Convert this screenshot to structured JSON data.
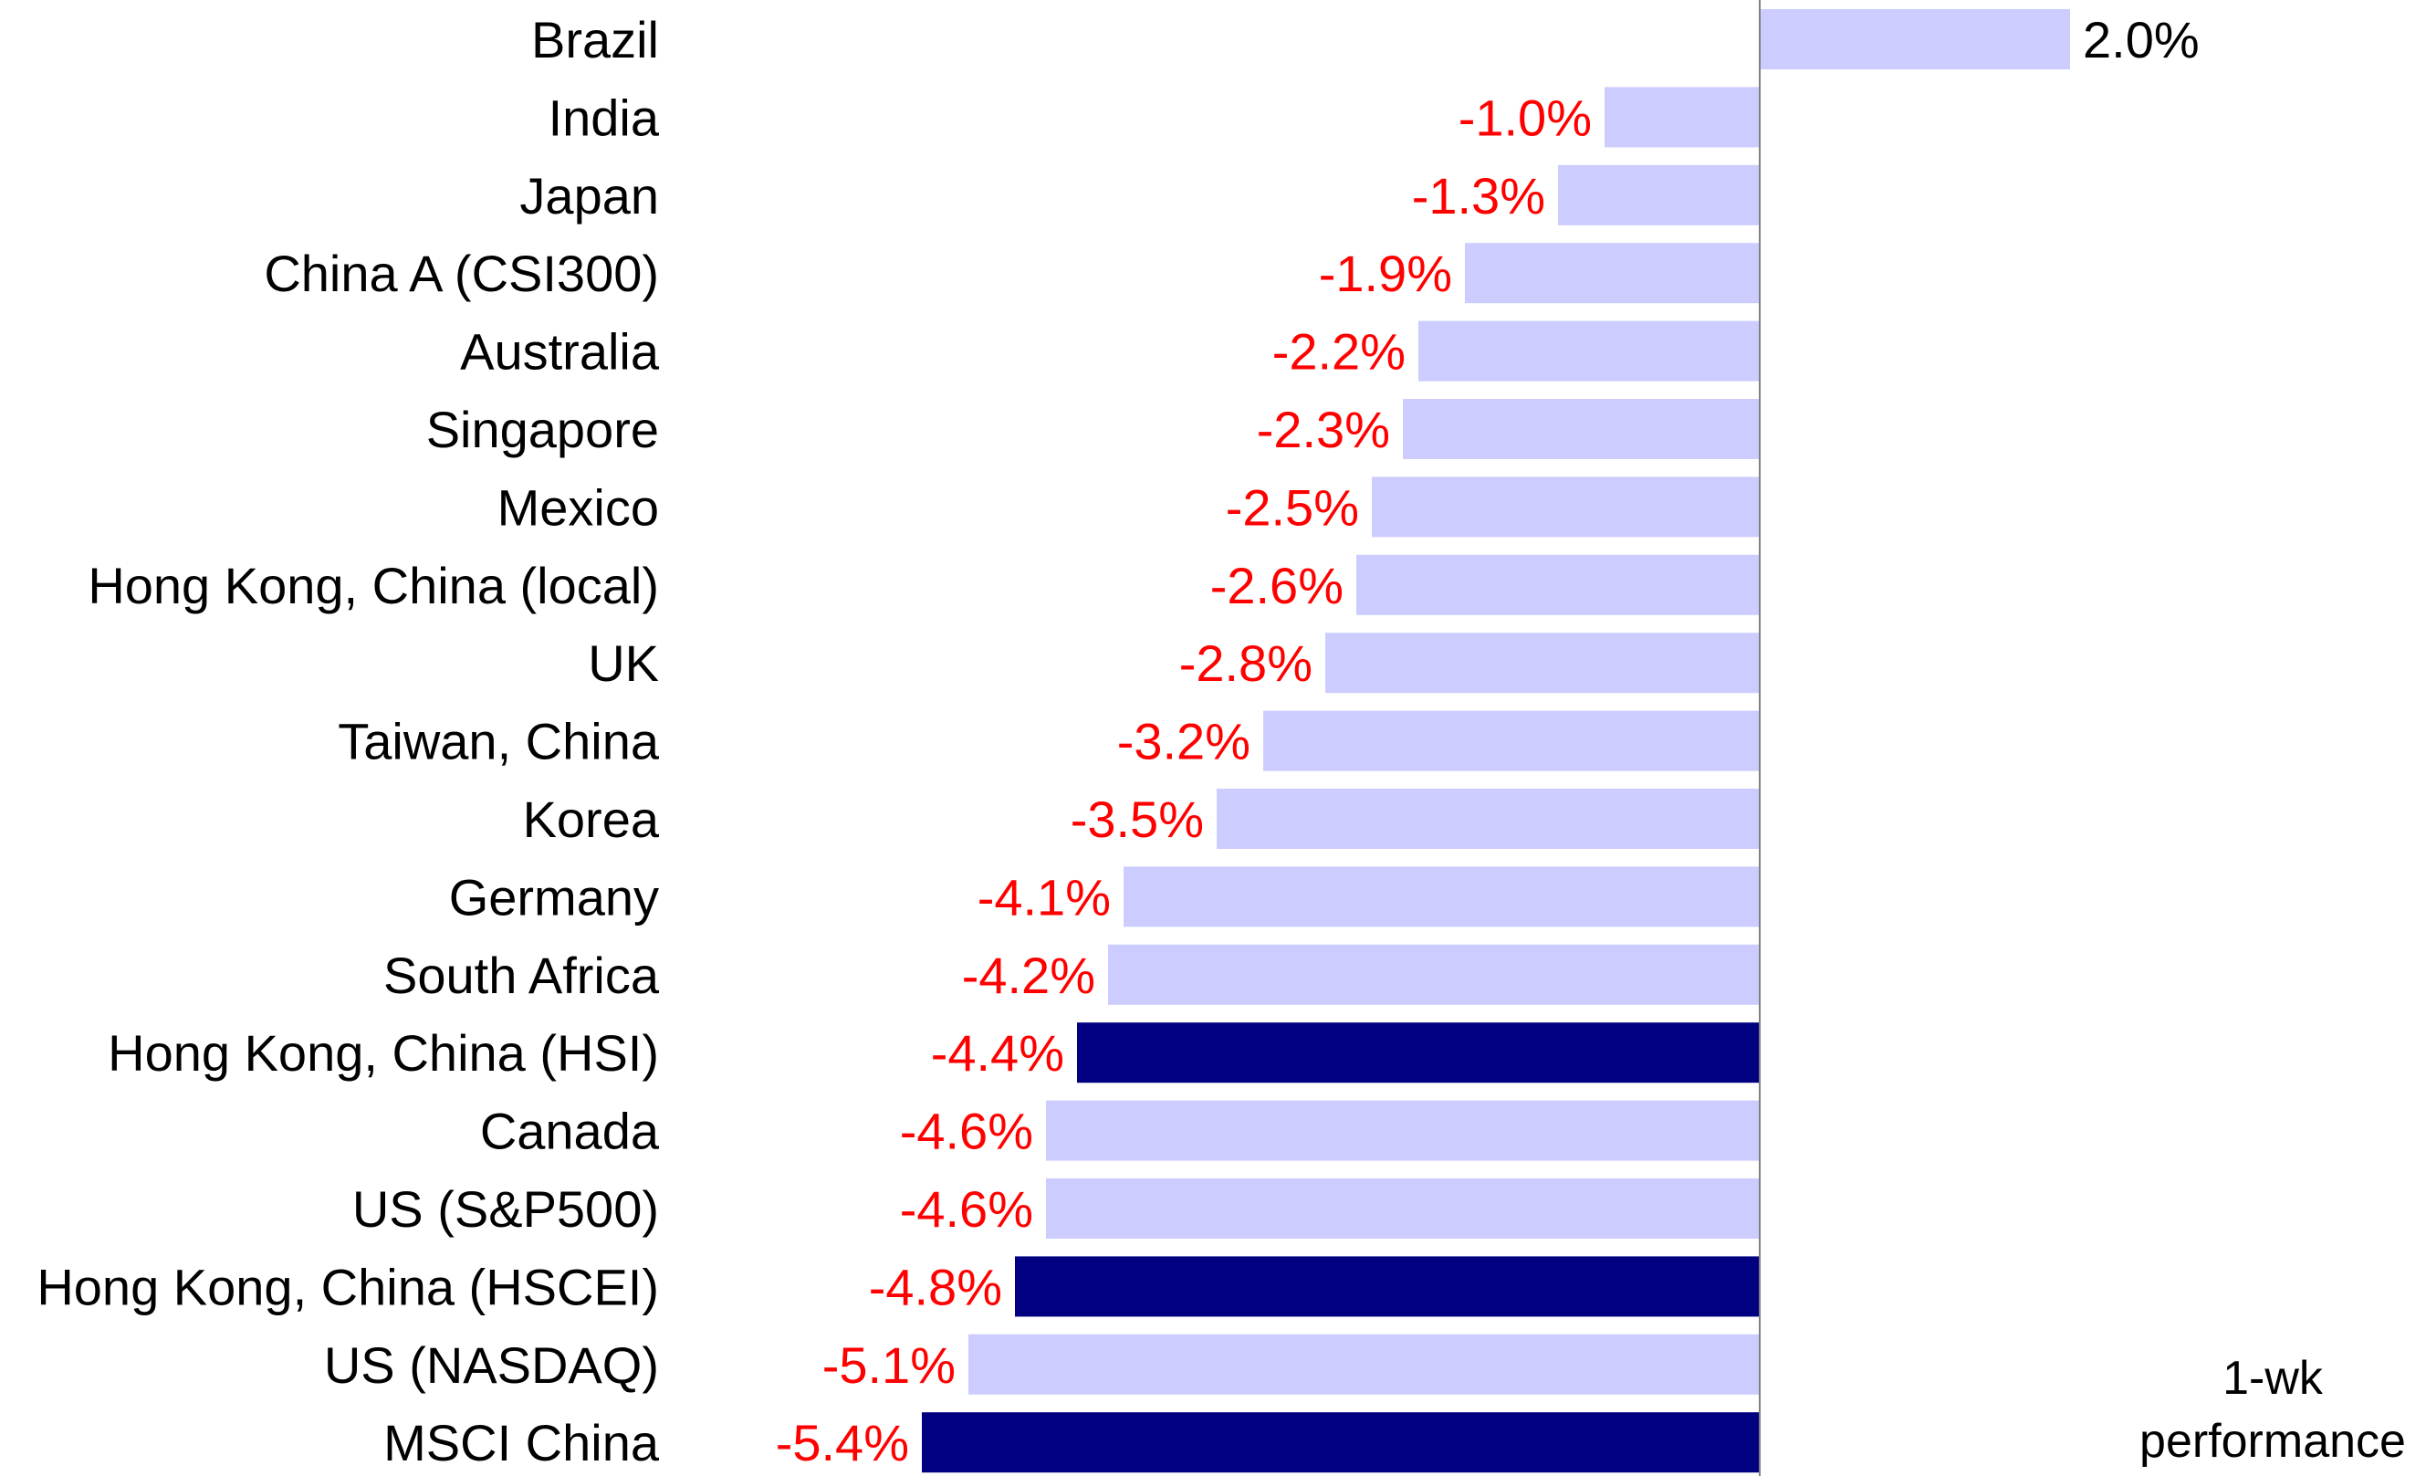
{
  "chart_data": {
    "type": "bar",
    "orientation": "horizontal",
    "title": "",
    "xlabel": "",
    "ylabel": "",
    "annotation": [
      "1-wk",
      "performance"
    ],
    "grid": false,
    "xlim": [
      -5.4,
      2.0
    ],
    "categories": [
      "Brazil",
      "India",
      "Japan",
      "China A (CSI300)",
      "Australia",
      "Singapore",
      "Mexico",
      "Hong Kong, China (local)",
      "UK",
      "Taiwan, China",
      "Korea",
      "Germany",
      "South Africa",
      "Hong Kong, China (HSI)",
      "Canada",
      "US (S&P500)",
      "Hong Kong, China (HSCEI)",
      "US (NASDAQ)",
      "MSCI China"
    ],
    "values": [
      2.0,
      -1.0,
      -1.3,
      -1.9,
      -2.2,
      -2.3,
      -2.5,
      -2.6,
      -2.8,
      -3.2,
      -3.5,
      -4.1,
      -4.2,
      -4.4,
      -4.6,
      -4.6,
      -4.8,
      -5.1,
      -5.4
    ],
    "value_labels": [
      "2.0%",
      "-1.0%",
      "-1.3%",
      "-1.9%",
      "-2.2%",
      "-2.3%",
      "-2.5%",
      "-2.6%",
      "-2.8%",
      "-3.2%",
      "-3.5%",
      "-4.1%",
      "-4.2%",
      "-4.4%",
      "-4.6%",
      "-4.6%",
      "-4.8%",
      "-5.1%",
      "-5.4%"
    ],
    "highlighted": [
      false,
      false,
      false,
      false,
      false,
      false,
      false,
      false,
      false,
      false,
      false,
      false,
      false,
      true,
      false,
      false,
      true,
      false,
      true
    ],
    "colors": {
      "bar": "#CCCCFF",
      "highlight_bar": "#000080",
      "positive_label": "#000000",
      "negative_label": "#FF0000",
      "axis": "#808080"
    }
  }
}
